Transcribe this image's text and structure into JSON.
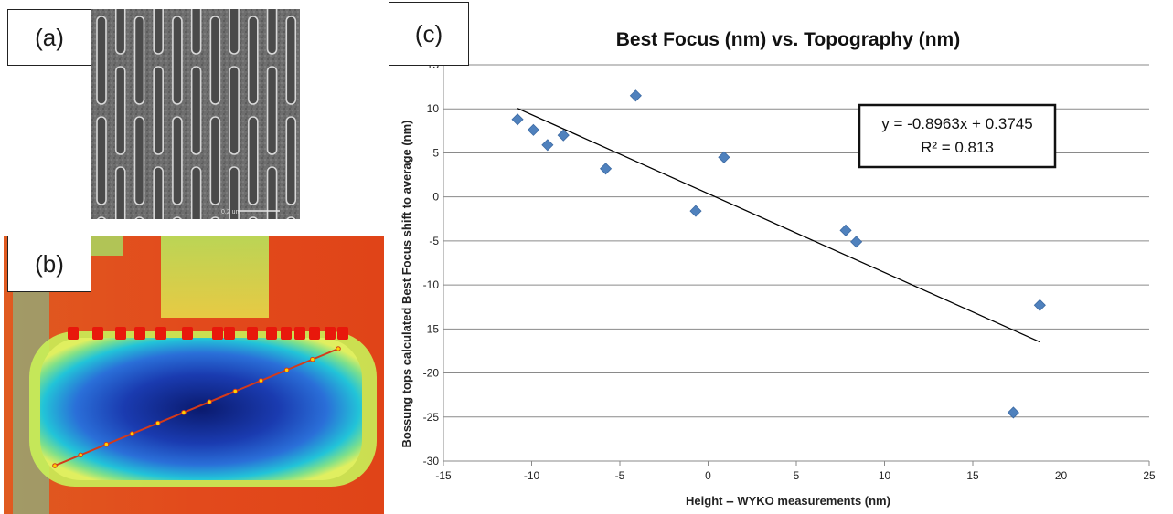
{
  "panels": {
    "a_label": "(a)",
    "b_label": "(b)",
    "c_label": "(c)"
  },
  "sem": {
    "scale_text": "0.2 um"
  },
  "chart_data": {
    "type": "scatter",
    "title": "Best Focus (nm) vs. Topography (nm)",
    "xlabel": "Height -- WYKO  measurements (nm)",
    "ylabel": "Bossung tops calculated Best Focus shift to average (nm)",
    "xlim": [
      -15,
      25
    ],
    "ylim": [
      -30,
      15
    ],
    "xticks": [
      -15,
      -10,
      -5,
      0,
      5,
      10,
      15,
      20,
      25
    ],
    "yticks": [
      15,
      10,
      5,
      0,
      -5,
      -10,
      -15,
      -20,
      -25,
      -30
    ],
    "ytick_labels": [
      "15",
      "10",
      "5",
      "0",
      "-5",
      "-10",
      "-15",
      "-20",
      "-25",
      "-30"
    ],
    "grid": "horizontal",
    "marker_color": "#4f81bd",
    "points": [
      {
        "x": -10.8,
        "y": 8.8
      },
      {
        "x": -9.9,
        "y": 7.6
      },
      {
        "x": -9.1,
        "y": 5.9
      },
      {
        "x": -8.2,
        "y": 7.0
      },
      {
        "x": -5.8,
        "y": 3.2
      },
      {
        "x": -4.1,
        "y": 11.5
      },
      {
        "x": -0.7,
        "y": -1.6
      },
      {
        "x": 0.9,
        "y": 4.5
      },
      {
        "x": 7.8,
        "y": -3.8
      },
      {
        "x": 8.4,
        "y": -5.1
      },
      {
        "x": 17.3,
        "y": -24.5
      },
      {
        "x": 18.8,
        "y": -12.3
      }
    ],
    "trendline": {
      "slope": -0.8963,
      "intercept": 0.3745,
      "x_range": [
        -10.8,
        18.8
      ]
    },
    "equation": "y = -0.8963x + 0.3745",
    "r_squared": "R² = 0.813"
  }
}
